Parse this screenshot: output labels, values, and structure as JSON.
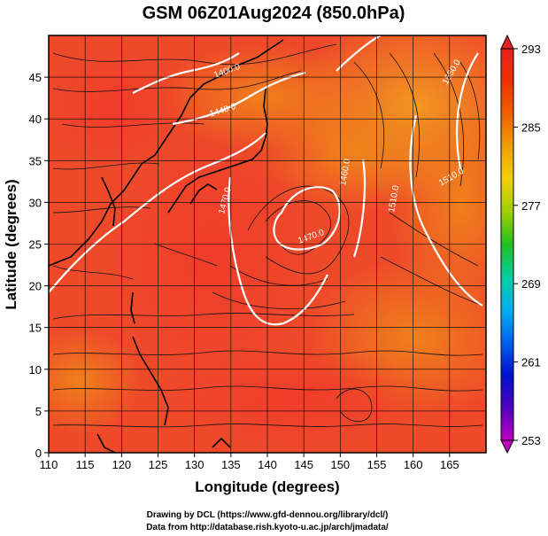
{
  "title": "GSM 06Z01Aug2024 (850.0hPa)",
  "xlabel": "Longitude (degrees)",
  "ylabel": "Latitude  (degrees)",
  "credits": [
    "Drawing by DCL (https://www.gfd-dennou.org/library/dcl/)",
    "Data from http://database.rish.kyoto-u.ac.jp/arch/jmadata/"
  ],
  "map": {
    "lon_range": [
      110,
      170
    ],
    "lat_range": [
      0,
      50
    ],
    "x_ticks": [
      "110",
      "115",
      "120",
      "125",
      "130",
      "135",
      "140",
      "145",
      "150",
      "155",
      "160",
      "165"
    ],
    "y_ticks": [
      "0",
      "5",
      "10",
      "15",
      "20",
      "25",
      "30",
      "35",
      "40",
      "45"
    ],
    "grid": true,
    "field": "temperature (shaded) with wind streamlines and geopotential height contours (white)",
    "contour_labels": [
      "1400.0",
      "1440.0",
      "1470.0",
      "1470.0",
      "1460.0",
      "1510.0",
      "1510.0",
      "1550.0"
    ]
  },
  "colorbar": {
    "min": 253,
    "max": 293,
    "tick_labels": [
      "293",
      "285",
      "277",
      "269",
      "261",
      "253"
    ],
    "colors": [
      "#c000c0",
      "#5000c0",
      "#0010d0",
      "#0060f0",
      "#00b0f0",
      "#00d0a0",
      "#20c020",
      "#a0d000",
      "#f0d000",
      "#f0a000",
      "#f06000",
      "#f03000",
      "#e82020"
    ]
  }
}
